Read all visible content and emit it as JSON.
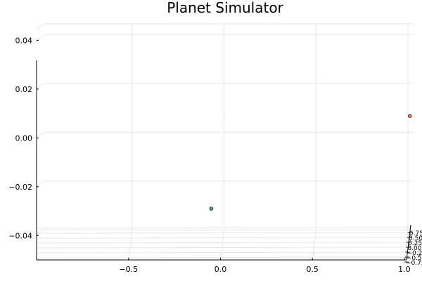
{
  "chart_data": {
    "type": "scatter",
    "title": "Planet Simulator",
    "xlabel": "",
    "ylabel": "",
    "zlabel": "",
    "projection": "3d",
    "grid": true,
    "legend": "none",
    "xlim": [
      -1.0,
      1.05
    ],
    "ylim": [
      -0.05,
      0.045
    ],
    "x_ticks": [
      {
        "value": -0.5,
        "label": "−0.5"
      },
      {
        "value": 0.0,
        "label": "0.0"
      },
      {
        "value": 0.5,
        "label": "0.5"
      },
      {
        "value": 1.0,
        "label": "1.0"
      }
    ],
    "y_ticks": [
      {
        "value": -0.04,
        "label": "−0.04"
      },
      {
        "value": -0.02,
        "label": "−0.02"
      },
      {
        "value": 0.0,
        "label": "0.00"
      },
      {
        "value": 0.02,
        "label": "0.02"
      },
      {
        "value": 0.04,
        "label": "0.04"
      }
    ],
    "z_ticks": [
      "−0.75",
      "−0.50",
      "−0.25",
      "0.00",
      "0.25",
      "0.50",
      "0.75"
    ],
    "points": [
      {
        "x": 1.03,
        "y": 0.009,
        "color": "#e26f46",
        "size": 2.5
      },
      {
        "x": -0.05,
        "y": -0.029,
        "color": "#3da44d",
        "size": 2.5
      },
      {
        "x": 0.02,
        "y": 0.0085,
        "color": "#a0a0a0",
        "size": 0.5
      }
    ]
  }
}
